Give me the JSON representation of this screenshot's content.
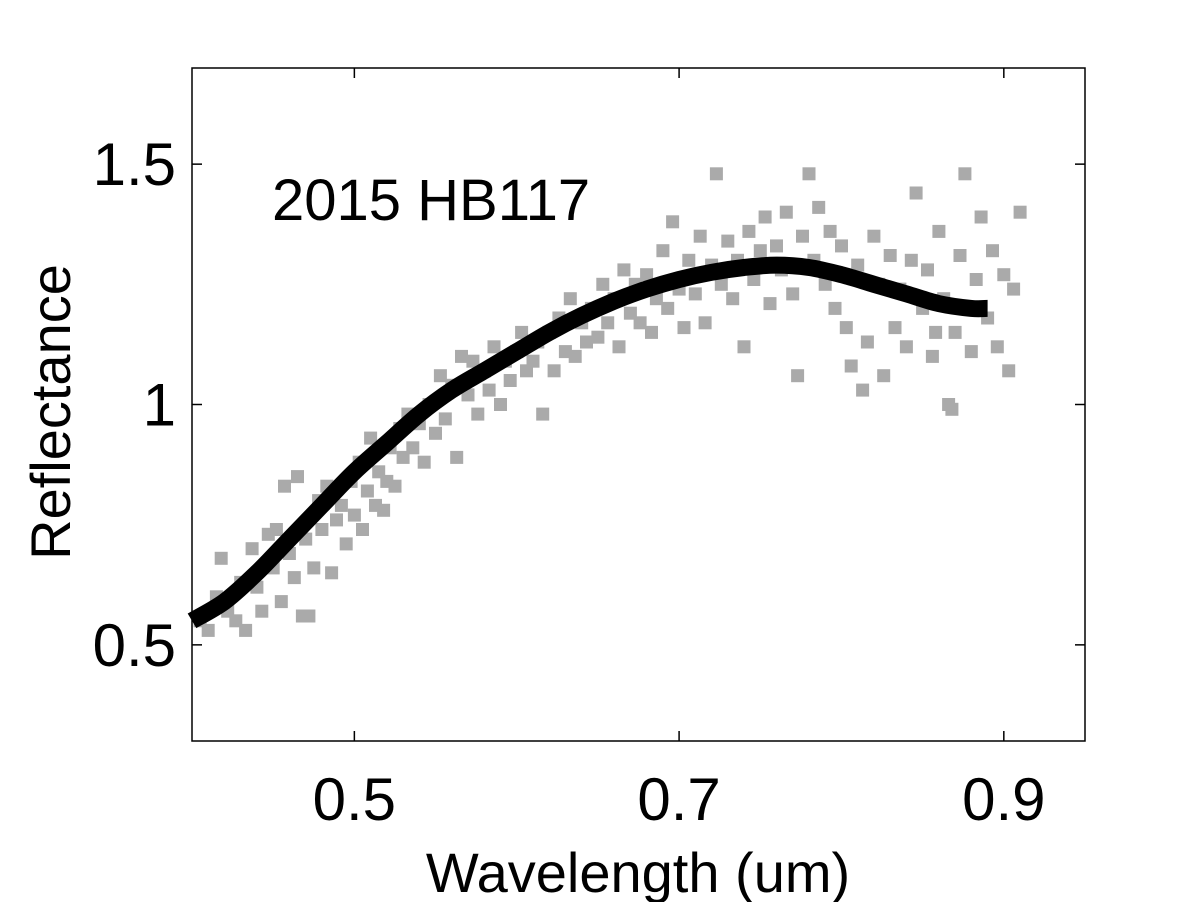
{
  "chart_data": {
    "type": "scatter",
    "annotation": "2015 HB117",
    "xlabel": "Wavelength (um)",
    "ylabel": "Reflectance",
    "xlim": [
      0.4,
      0.95
    ],
    "ylim": [
      0.3,
      1.7
    ],
    "xticks": [
      0.5,
      0.7,
      0.9
    ],
    "xtick_labels": [
      "0.5",
      "0.7",
      "0.9"
    ],
    "yticks": [
      0.5,
      1.0,
      1.5
    ],
    "ytick_labels": [
      "0.5",
      "1",
      "1.5"
    ],
    "grid": false,
    "legend": "none",
    "colors": {
      "points": "#aaaaaa",
      "fit": "#000000",
      "axes": "#000000"
    },
    "series": [
      {
        "kind": "scatter",
        "points": [
          [
            0.405,
            0.55
          ],
          [
            0.41,
            0.53
          ],
          [
            0.415,
            0.6
          ],
          [
            0.418,
            0.68
          ],
          [
            0.422,
            0.57
          ],
          [
            0.427,
            0.55
          ],
          [
            0.43,
            0.63
          ],
          [
            0.433,
            0.53
          ],
          [
            0.437,
            0.7
          ],
          [
            0.44,
            0.62
          ],
          [
            0.443,
            0.57
          ],
          [
            0.447,
            0.73
          ],
          [
            0.45,
            0.66
          ],
          [
            0.452,
            0.74
          ],
          [
            0.455,
            0.59
          ],
          [
            0.457,
            0.83
          ],
          [
            0.46,
            0.69
          ],
          [
            0.463,
            0.64
          ],
          [
            0.465,
            0.85
          ],
          [
            0.468,
            0.56
          ],
          [
            0.47,
            0.72
          ],
          [
            0.472,
            0.56
          ],
          [
            0.475,
            0.66
          ],
          [
            0.478,
            0.8
          ],
          [
            0.48,
            0.74
          ],
          [
            0.483,
            0.83
          ],
          [
            0.486,
            0.65
          ],
          [
            0.489,
            0.76
          ],
          [
            0.492,
            0.79
          ],
          [
            0.495,
            0.71
          ],
          [
            0.498,
            0.84
          ],
          [
            0.5,
            0.77
          ],
          [
            0.503,
            0.88
          ],
          [
            0.505,
            0.74
          ],
          [
            0.508,
            0.82
          ],
          [
            0.51,
            0.93
          ],
          [
            0.513,
            0.79
          ],
          [
            0.515,
            0.86
          ],
          [
            0.518,
            0.78
          ],
          [
            0.52,
            0.84
          ],
          [
            0.522,
            0.91
          ],
          [
            0.525,
            0.83
          ],
          [
            0.528,
            0.95
          ],
          [
            0.53,
            0.89
          ],
          [
            0.533,
            0.98
          ],
          [
            0.536,
            0.91
          ],
          [
            0.54,
            0.96
          ],
          [
            0.543,
            0.88
          ],
          [
            0.546,
            1.0
          ],
          [
            0.55,
            0.94
          ],
          [
            0.553,
            1.06
          ],
          [
            0.556,
            0.97
          ],
          [
            0.56,
            1.04
          ],
          [
            0.563,
            0.89
          ],
          [
            0.566,
            1.1
          ],
          [
            0.57,
            1.02
          ],
          [
            0.573,
            1.09
          ],
          [
            0.576,
            0.98
          ],
          [
            0.58,
            1.07
          ],
          [
            0.583,
            1.03
          ],
          [
            0.586,
            1.12
          ],
          [
            0.59,
            1.0
          ],
          [
            0.593,
            1.09
          ],
          [
            0.596,
            1.05
          ],
          [
            0.6,
            1.11
          ],
          [
            0.603,
            1.15
          ],
          [
            0.606,
            1.07
          ],
          [
            0.61,
            1.09
          ],
          [
            0.613,
            1.13
          ],
          [
            0.616,
            0.98
          ],
          [
            0.62,
            1.15
          ],
          [
            0.623,
            1.07
          ],
          [
            0.626,
            1.18
          ],
          [
            0.63,
            1.11
          ],
          [
            0.633,
            1.22
          ],
          [
            0.636,
            1.1
          ],
          [
            0.64,
            1.17
          ],
          [
            0.643,
            1.13
          ],
          [
            0.646,
            1.2
          ],
          [
            0.65,
            1.14
          ],
          [
            0.653,
            1.25
          ],
          [
            0.656,
            1.17
          ],
          [
            0.66,
            1.22
          ],
          [
            0.663,
            1.12
          ],
          [
            0.666,
            1.28
          ],
          [
            0.67,
            1.19
          ],
          [
            0.673,
            1.25
          ],
          [
            0.676,
            1.17
          ],
          [
            0.68,
            1.27
          ],
          [
            0.683,
            1.15
          ],
          [
            0.686,
            1.22
          ],
          [
            0.69,
            1.32
          ],
          [
            0.693,
            1.2
          ],
          [
            0.696,
            1.38
          ],
          [
            0.7,
            1.24
          ],
          [
            0.703,
            1.16
          ],
          [
            0.706,
            1.3
          ],
          [
            0.71,
            1.23
          ],
          [
            0.713,
            1.35
          ],
          [
            0.716,
            1.17
          ],
          [
            0.72,
            1.29
          ],
          [
            0.723,
            1.48
          ],
          [
            0.726,
            1.25
          ],
          [
            0.73,
            1.34
          ],
          [
            0.733,
            1.22
          ],
          [
            0.736,
            1.3
          ],
          [
            0.74,
            1.12
          ],
          [
            0.743,
            1.36
          ],
          [
            0.746,
            1.26
          ],
          [
            0.75,
            1.32
          ],
          [
            0.753,
            1.39
          ],
          [
            0.756,
            1.21
          ],
          [
            0.76,
            1.33
          ],
          [
            0.763,
            1.28
          ],
          [
            0.766,
            1.4
          ],
          [
            0.77,
            1.23
          ],
          [
            0.773,
            1.06
          ],
          [
            0.776,
            1.35
          ],
          [
            0.78,
            1.48
          ],
          [
            0.783,
            1.3
          ],
          [
            0.786,
            1.41
          ],
          [
            0.79,
            1.25
          ],
          [
            0.793,
            1.36
          ],
          [
            0.796,
            1.2
          ],
          [
            0.8,
            1.33
          ],
          [
            0.803,
            1.16
          ],
          [
            0.806,
            1.08
          ],
          [
            0.81,
            1.29
          ],
          [
            0.813,
            1.03
          ],
          [
            0.816,
            1.13
          ],
          [
            0.82,
            1.35
          ],
          [
            0.823,
            1.25
          ],
          [
            0.826,
            1.06
          ],
          [
            0.83,
            1.31
          ],
          [
            0.833,
            1.16
          ],
          [
            0.836,
            1.24
          ],
          [
            0.84,
            1.12
          ],
          [
            0.843,
            1.3
          ],
          [
            0.846,
            1.44
          ],
          [
            0.85,
            1.2
          ],
          [
            0.853,
            1.28
          ],
          [
            0.856,
            1.1
          ],
          [
            0.86,
            1.36
          ],
          [
            0.863,
            1.22
          ],
          [
            0.866,
            1.0
          ],
          [
            0.87,
            1.15
          ],
          [
            0.873,
            1.31
          ],
          [
            0.876,
            1.48
          ],
          [
            0.88,
            1.11
          ],
          [
            0.883,
            1.26
          ],
          [
            0.886,
            1.39
          ],
          [
            0.89,
            1.18
          ],
          [
            0.893,
            1.32
          ],
          [
            0.896,
            1.12
          ],
          [
            0.9,
            1.27
          ],
          [
            0.903,
            1.07
          ],
          [
            0.906,
            1.24
          ],
          [
            0.91,
            1.4
          ],
          [
            0.868,
            0.99
          ],
          [
            0.858,
            1.15
          ]
        ]
      },
      {
        "kind": "line",
        "points": [
          [
            0.4,
            0.55
          ],
          [
            0.42,
            0.59
          ],
          [
            0.44,
            0.65
          ],
          [
            0.46,
            0.72
          ],
          [
            0.48,
            0.79
          ],
          [
            0.5,
            0.86
          ],
          [
            0.52,
            0.92
          ],
          [
            0.54,
            0.98
          ],
          [
            0.56,
            1.03
          ],
          [
            0.58,
            1.07
          ],
          [
            0.6,
            1.11
          ],
          [
            0.62,
            1.15
          ],
          [
            0.64,
            1.185
          ],
          [
            0.66,
            1.215
          ],
          [
            0.68,
            1.24
          ],
          [
            0.7,
            1.26
          ],
          [
            0.72,
            1.275
          ],
          [
            0.74,
            1.285
          ],
          [
            0.76,
            1.29
          ],
          [
            0.78,
            1.285
          ],
          [
            0.8,
            1.27
          ],
          [
            0.82,
            1.25
          ],
          [
            0.84,
            1.23
          ],
          [
            0.86,
            1.21
          ],
          [
            0.88,
            1.2
          ],
          [
            0.89,
            1.2
          ]
        ]
      }
    ]
  }
}
